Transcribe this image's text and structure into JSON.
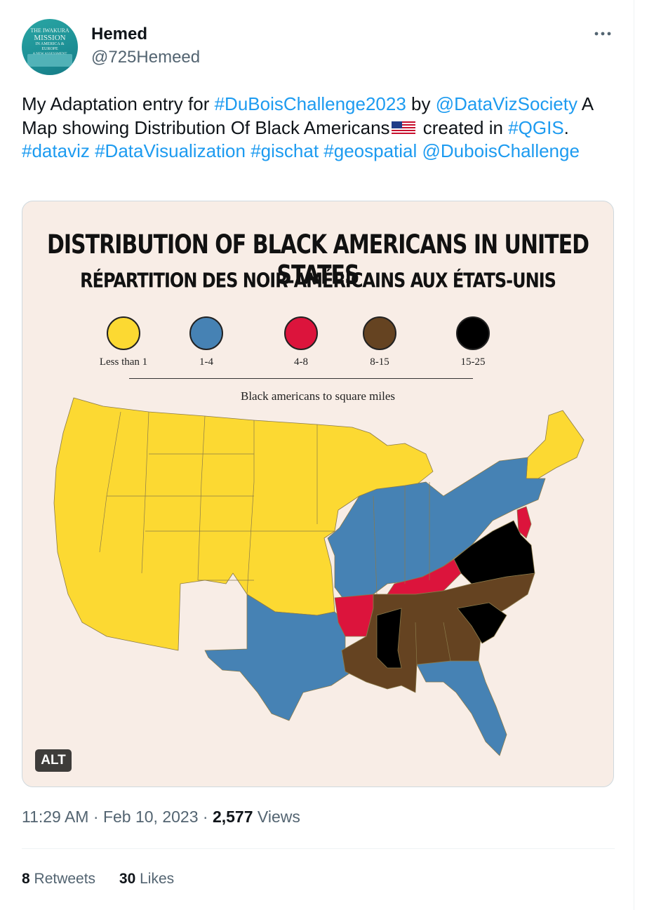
{
  "author": {
    "name": "Hemed",
    "handle": "@725Hemeed",
    "avatar_text": [
      "THE IWAKURA",
      "MISSION",
      "IN AMERICA &",
      "EUROPE",
      "A NEW ASSESSMENT"
    ]
  },
  "more_icon": "more-horizontal-icon",
  "tweet": {
    "t1": "My Adaptation entry for ",
    "tag1": "#DuBoisChallenge2023",
    "t2": " by ",
    "mention1": "@DataVizSociety",
    "t3": " A Map showing Distribution Of Black Americans",
    "flag_icon": "us-flag-emoji",
    "t4": " created in ",
    "tag2": "#QGIS",
    "t5": ". ",
    "tag3": "#dataviz",
    "tag4": "#DataVisualization",
    "tag5": "#gischat",
    "tag6": "#geospatial",
    "mention2": "@DuboisChallenge"
  },
  "image": {
    "title": "DISTRIBUTION OF BLACK AMERICANS IN UNITED STATES",
    "subtitle": "RÉPARTITION DES NOIR-AMÉRICAINS AUX ÉTATS-UNIS",
    "legend": [
      {
        "label": "Less than 1",
        "color": "#fcd932"
      },
      {
        "label": "1-4",
        "color": "#4682b4"
      },
      {
        "label": "4-8",
        "color": "#dc143c"
      },
      {
        "label": "8-15",
        "color": "#654321"
      },
      {
        "label": "15-25",
        "color": "#000000"
      }
    ],
    "caption": "Black americans to square miles",
    "alt_badge": "ALT"
  },
  "meta": {
    "time": "11:29 AM",
    "sep1": " · ",
    "date": "Feb 10, 2023",
    "sep2": " · ",
    "views_count": "2,577",
    "views_label": " Views"
  },
  "stats": {
    "retweets_count": "8",
    "retweets_label": " Retweets",
    "likes_count": "30",
    "likes_label": " Likes"
  }
}
